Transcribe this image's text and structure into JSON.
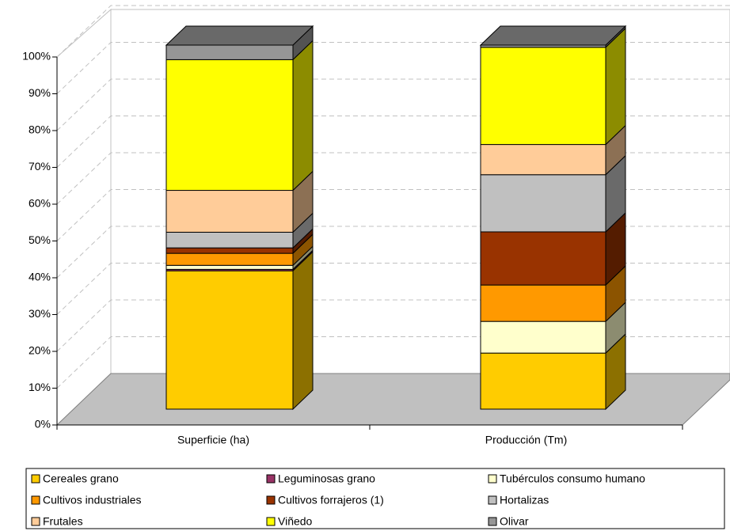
{
  "chart_data": {
    "type": "stacked-bar-3d",
    "categories": [
      "Superficie (ha)",
      "Producción (Tm)"
    ],
    "series": [
      {
        "name": "Cereales grano",
        "color": "#FFCC00",
        "values": [
          38.0,
          15.4
        ]
      },
      {
        "name": "Leguminosas grano",
        "color": "#993366",
        "values": [
          0.4,
          0.0
        ]
      },
      {
        "name": "Tubérculos consumo humano",
        "color": "#FFFFCC",
        "values": [
          1.1,
          8.7
        ]
      },
      {
        "name": "Cultivos industriales",
        "color": "#FF9900",
        "values": [
          3.3,
          10.0
        ]
      },
      {
        "name": "Cultivos forrajeros (1)",
        "color": "#993300",
        "values": [
          1.5,
          14.6
        ]
      },
      {
        "name": "Hortalizas",
        "color": "#C0C0C0",
        "values": [
          4.3,
          15.7
        ]
      },
      {
        "name": "Frutales",
        "color": "#FFCC99",
        "values": [
          11.5,
          8.3
        ]
      },
      {
        "name": "Viñedo",
        "color": "#FFFF00",
        "values": [
          35.9,
          26.7
        ]
      },
      {
        "name": "Olivar",
        "color": "#969696",
        "values": [
          4.0,
          0.6
        ]
      }
    ],
    "ylim": [
      0,
      100
    ],
    "yticks": [
      {
        "value": 0,
        "label": "0%"
      },
      {
        "value": 10,
        "label": "10%"
      },
      {
        "value": 20,
        "label": "20%"
      },
      {
        "value": 30,
        "label": "30%"
      },
      {
        "value": 40,
        "label": "40%"
      },
      {
        "value": 50,
        "label": "50%"
      },
      {
        "value": 60,
        "label": "60%"
      },
      {
        "value": 70,
        "label": "70%"
      },
      {
        "value": 80,
        "label": "80%"
      },
      {
        "value": 90,
        "label": "90%"
      },
      {
        "value": 100,
        "label": "100%"
      }
    ],
    "grid": true
  }
}
